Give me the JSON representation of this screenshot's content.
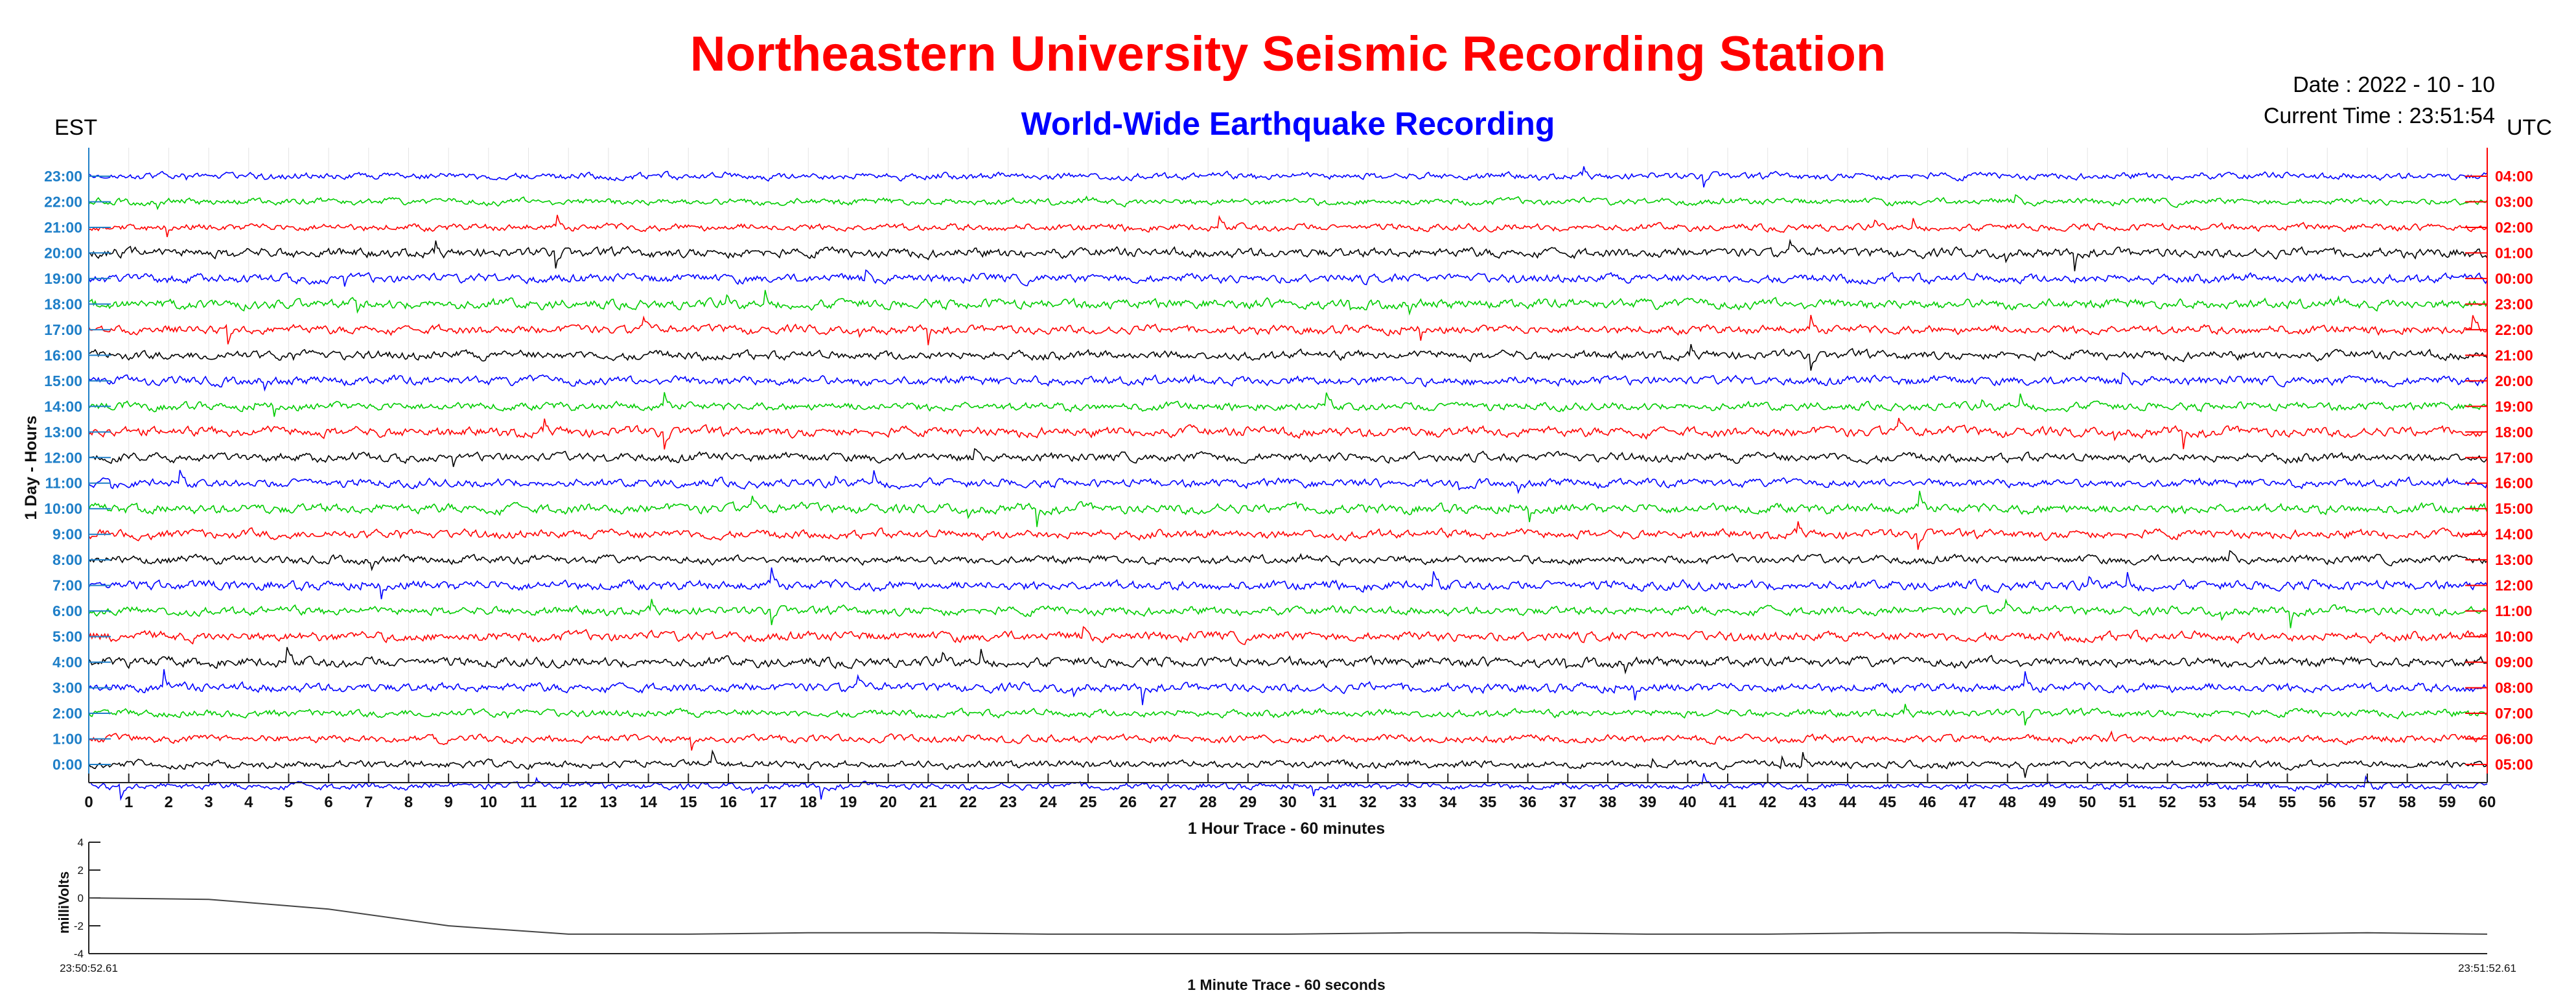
{
  "header": {
    "title": "Northeastern University Seismic Recording Station",
    "subtitle": "World-Wide Earthquake Recording",
    "date_line": "Date : 2022 - 10 - 10",
    "time_line": "Current Time : 23:51:54",
    "left_zone": "EST",
    "right_zone": "UTC"
  },
  "colors": {
    "title": "#ff0000",
    "subtitle": "#0000ff",
    "left_ticks": "#1f7fc8",
    "right_ticks": "#ff0000",
    "trace_cycle": [
      "#0000ff",
      "#00cc00",
      "#ff0000",
      "#000000"
    ]
  },
  "chart_data": [
    {
      "type": "line",
      "xlabel": "1 Hour Trace - 60 minutes",
      "ylabel": "1 Day - Hours",
      "xlim": [
        0,
        60
      ],
      "x_ticks": [
        "0",
        "1",
        "2",
        "3",
        "4",
        "5",
        "6",
        "7",
        "8",
        "9",
        "10",
        "11",
        "12",
        "13",
        "14",
        "15",
        "16",
        "17",
        "18",
        "19",
        "20",
        "21",
        "22",
        "23",
        "24",
        "25",
        "26",
        "27",
        "28",
        "29",
        "30",
        "31",
        "32",
        "33",
        "34",
        "35",
        "36",
        "37",
        "38",
        "39",
        "40",
        "41",
        "42",
        "43",
        "44",
        "45",
        "46",
        "47",
        "48",
        "49",
        "50",
        "51",
        "52",
        "53",
        "54",
        "55",
        "56",
        "57",
        "58",
        "59",
        "60"
      ],
      "left_ticks": [
        "23:00",
        "22:00",
        "21:00",
        "20:00",
        "19:00",
        "18:00",
        "17:00",
        "16:00",
        "15:00",
        "14:00",
        "13:00",
        "12:00",
        "11:00",
        "10:00",
        "9:00",
        "8:00",
        "7:00",
        "6:00",
        "5:00",
        "4:00",
        "3:00",
        "2:00",
        "1:00",
        "0:00"
      ],
      "right_ticks": [
        "04:00",
        "03:00",
        "02:00",
        "01:00",
        "00:00",
        "23:00",
        "22:00",
        "21:00",
        "20:00",
        "19:00",
        "18:00",
        "17:00",
        "16:00",
        "15:00",
        "14:00",
        "13:00",
        "12:00",
        "11:00",
        "10:00",
        "09:00",
        "08:00",
        "07:00",
        "06:00",
        "05:00"
      ],
      "recorded_hours": [
        0,
        1,
        2,
        3,
        4,
        5,
        6,
        7,
        8,
        9,
        10,
        11,
        12,
        13,
        14,
        15,
        16,
        17,
        18,
        19,
        20,
        21,
        22,
        23
      ],
      "grid": "vertical-minor"
    },
    {
      "type": "line",
      "xlabel": "1 Minute Trace  - 60 seconds",
      "ylabel": "milliVolts",
      "ylim": [
        -4,
        4
      ],
      "y_ticks": [
        "4",
        "2",
        "0",
        "-2",
        "-4"
      ],
      "x_start_label": "23:50:52.61",
      "x_end_label": "23:51:52.61",
      "series": [
        {
          "x": [
            0,
            3,
            6,
            9,
            12,
            15,
            18,
            21,
            24,
            27,
            30,
            33,
            36,
            39,
            42,
            45,
            48,
            51,
            54,
            57,
            60
          ],
          "values": [
            0.0,
            -0.1,
            -0.8,
            -2.0,
            -2.6,
            -2.6,
            -2.5,
            -2.5,
            -2.6,
            -2.6,
            -2.6,
            -2.5,
            -2.5,
            -2.6,
            -2.6,
            -2.5,
            -2.5,
            -2.6,
            -2.6,
            -2.5,
            -2.6
          ]
        }
      ]
    }
  ]
}
